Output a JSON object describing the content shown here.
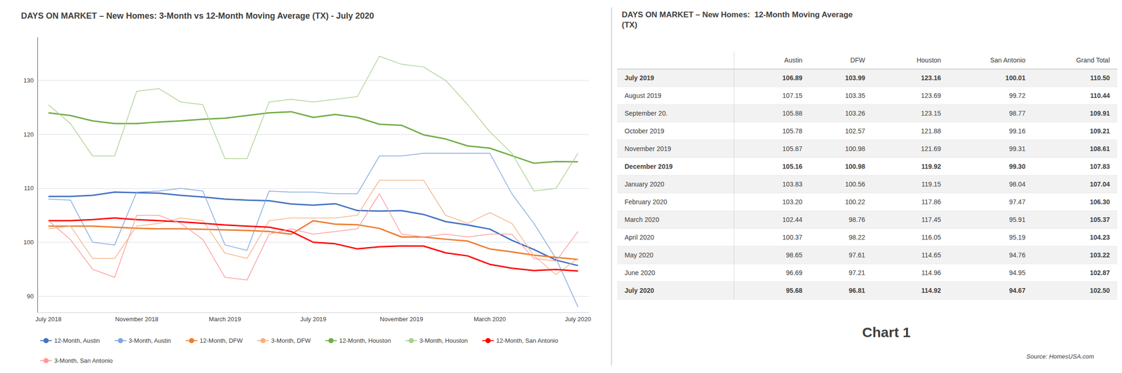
{
  "chart_data": {
    "type": "line",
    "title": "DAYS ON MARKET – New Homes: 3-Month vs 12-Month Moving Average (TX) - July 2020",
    "categories": [
      "July 2018",
      null,
      null,
      null,
      "November 2018",
      null,
      null,
      null,
      "March 2019",
      null,
      null,
      null,
      "July 2019",
      null,
      null,
      null,
      "November 2019",
      null,
      null,
      null,
      "March 2020",
      null,
      null,
      null,
      "July 2020"
    ],
    "ylim": [
      87,
      138
    ],
    "yticks": [
      90,
      100,
      110,
      120,
      130
    ],
    "grid": true,
    "legend": "bottom",
    "series": [
      {
        "name": "12-Month, Austin",
        "color": "#4472C4",
        "values": [
          108.5,
          108.5,
          108.7,
          109.3,
          109.2,
          109.1,
          108.7,
          108.4,
          108.0,
          107.8,
          107.7,
          107.1,
          106.89,
          107.15,
          105.88,
          105.78,
          105.87,
          105.16,
          103.83,
          103.2,
          102.44,
          100.37,
          98.65,
          96.69,
          95.68
        ]
      },
      {
        "name": "3-Month, Austin",
        "color": "#7EA6E0",
        "values": [
          108.0,
          107.8,
          100.0,
          99.5,
          109.3,
          109.5,
          110.0,
          109.5,
          99.5,
          98.5,
          109.5,
          109.3,
          109.3,
          109.0,
          109.0,
          116.0,
          116.0,
          116.5,
          116.5,
          116.5,
          116.5,
          109.0,
          103.5,
          97.0,
          88.0
        ]
      },
      {
        "name": "12-Month, DFW",
        "color": "#ED7D31",
        "values": [
          103.0,
          103.0,
          103.0,
          102.8,
          102.6,
          102.5,
          102.5,
          102.4,
          102.3,
          102.2,
          102.0,
          101.5,
          103.99,
          103.35,
          103.26,
          102.57,
          100.98,
          100.98,
          100.56,
          100.22,
          98.76,
          98.22,
          97.61,
          97.21,
          96.81
        ]
      },
      {
        "name": "3-Month, DFW",
        "color": "#F4B183",
        "values": [
          102.5,
          103.0,
          97.0,
          97.0,
          103.0,
          103.5,
          104.5,
          104.0,
          98.0,
          97.0,
          104.0,
          104.5,
          104.5,
          104.5,
          105.0,
          111.5,
          111.5,
          111.5,
          105.0,
          103.5,
          105.5,
          103.5,
          97.5,
          94.0,
          97.0
        ]
      },
      {
        "name": "12-Month, Houston",
        "color": "#70AD47",
        "values": [
          124.0,
          123.5,
          122.5,
          122.0,
          122.0,
          122.3,
          122.5,
          122.8,
          123.0,
          123.5,
          124.0,
          124.2,
          123.16,
          123.69,
          123.15,
          121.88,
          121.69,
          119.92,
          119.15,
          117.86,
          117.45,
          116.05,
          114.65,
          114.96,
          114.92
        ]
      },
      {
        "name": "3-Month, Houston",
        "color": "#A9D18E",
        "values": [
          125.5,
          122.0,
          116.0,
          116.0,
          128.0,
          128.5,
          126.0,
          125.5,
          115.5,
          115.5,
          126.0,
          126.5,
          126.0,
          126.5,
          127.0,
          134.5,
          133.0,
          132.5,
          130.0,
          125.5,
          120.5,
          116.5,
          109.5,
          110.0,
          116.5
        ]
      },
      {
        "name": "12-Month, San Antonio",
        "color": "#FF0000",
        "values": [
          104.0,
          104.0,
          104.2,
          104.5,
          104.2,
          104.0,
          103.8,
          103.5,
          103.2,
          103.0,
          102.8,
          102.0,
          100.01,
          99.72,
          98.77,
          99.16,
          99.31,
          99.3,
          98.04,
          97.47,
          95.91,
          95.19,
          94.76,
          94.95,
          94.67
        ]
      },
      {
        "name": "3-Month, San Antonio",
        "color": "#FF9999",
        "values": [
          104.0,
          100.5,
          95.0,
          93.5,
          105.0,
          105.0,
          103.5,
          100.5,
          93.5,
          93.0,
          101.5,
          102.5,
          101.5,
          102.0,
          102.5,
          109.0,
          101.5,
          101.0,
          101.5,
          101.0,
          101.5,
          101.5,
          97.0,
          96.5,
          102.0
        ]
      }
    ],
    "annotations": [
      "Chart 1",
      "Source: HomesUSA.com"
    ]
  },
  "table": {
    "title": "DAYS ON MARKET – New Homes:  12-Month Moving Average\n(TX)",
    "headers": [
      "Austin",
      "DFW",
      "Houston",
      "San Antonio",
      "Grand Total"
    ],
    "rows": [
      [
        "July 2019",
        "106.89",
        "103.99",
        "123.16",
        "100.01",
        "110.50"
      ],
      [
        "August 2019",
        "107.15",
        "103.35",
        "123.69",
        "99.72",
        "110.44"
      ],
      [
        "September 20.",
        "105.88",
        "103.26",
        "123.15",
        "98.77",
        "109.91"
      ],
      [
        "October 2019",
        "105.78",
        "102.57",
        "121.88",
        "99.16",
        "109.21"
      ],
      [
        "November 2019",
        "105.87",
        "100.98",
        "121.69",
        "99.31",
        "108.61"
      ],
      [
        "December 2019",
        "105.16",
        "100.98",
        "119.92",
        "99.30",
        "107.83"
      ],
      [
        "January 2020",
        "103.83",
        "100.56",
        "119.15",
        "98.04",
        "107.04"
      ],
      [
        "February 2020",
        "103.20",
        "100.22",
        "117.86",
        "97.47",
        "106.30"
      ],
      [
        "March 2020",
        "102.44",
        "98.76",
        "117.45",
        "95.91",
        "105.37"
      ],
      [
        "April 2020",
        "100.37",
        "98.22",
        "116.05",
        "95.19",
        "104.23"
      ],
      [
        "May 2020",
        "98.65",
        "97.61",
        "114.65",
        "94.76",
        "103.22"
      ],
      [
        "June 2020",
        "96.69",
        "97.21",
        "114.96",
        "94.95",
        "102.87"
      ],
      [
        "July 2020",
        "95.68",
        "96.81",
        "114.92",
        "94.67",
        "102.50"
      ]
    ]
  }
}
